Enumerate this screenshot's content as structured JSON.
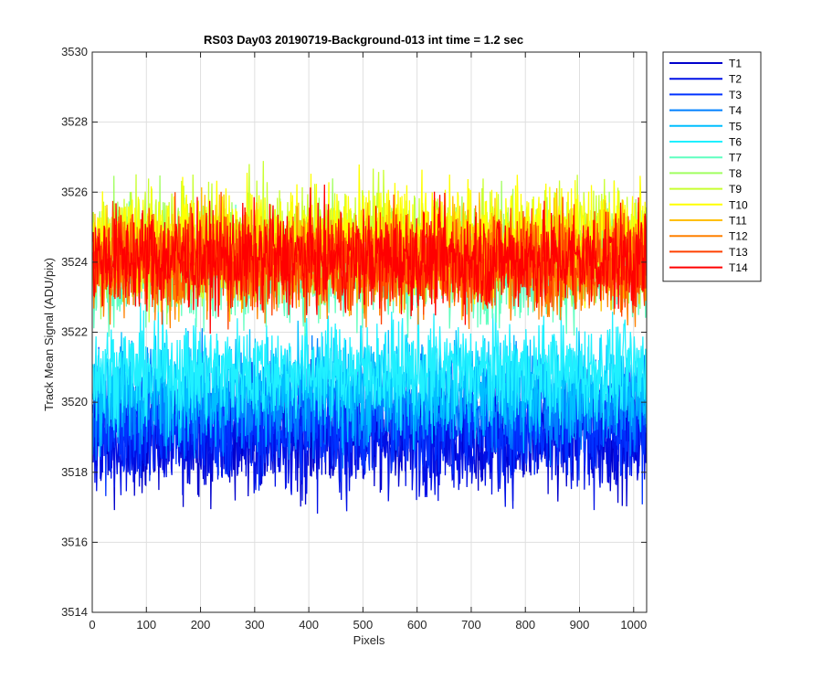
{
  "chart_data": {
    "type": "line",
    "title": "RS03 Day03 20190719-Background-013 int time = 1.2 sec",
    "xlabel": "Pixels",
    "ylabel": "Track Mean Signal (ADU/pix)",
    "xlim": [
      0,
      1024
    ],
    "ylim": [
      3514,
      3530
    ],
    "x_ticks": [
      0,
      100,
      200,
      300,
      400,
      500,
      600,
      700,
      800,
      900,
      1000
    ],
    "y_ticks": [
      3514,
      3516,
      3518,
      3520,
      3522,
      3524,
      3526,
      3528,
      3530
    ],
    "grid": true,
    "legend_position": "outside-top-right",
    "x_range": [
      1,
      1024
    ],
    "series": [
      {
        "name": "T1",
        "color": "#0000cc",
        "mean": 3519.1,
        "noise": 1.4
      },
      {
        "name": "T2",
        "color": "#0010e6",
        "mean": 3519.0,
        "noise": 1.4
      },
      {
        "name": "T3",
        "color": "#0033ff",
        "mean": 3519.4,
        "noise": 1.3
      },
      {
        "name": "T4",
        "color": "#0080ff",
        "mean": 3520.0,
        "noise": 1.2
      },
      {
        "name": "T5",
        "color": "#00bfff",
        "mean": 3520.4,
        "noise": 1.2
      },
      {
        "name": "T6",
        "color": "#20f0ff",
        "mean": 3520.9,
        "noise": 1.2
      },
      {
        "name": "T7",
        "color": "#60ffc0",
        "mean": 3523.8,
        "noise": 1.3
      },
      {
        "name": "T8",
        "color": "#a0ff60",
        "mean": 3524.3,
        "noise": 1.3
      },
      {
        "name": "T9",
        "color": "#c8ff30",
        "mean": 3524.6,
        "noise": 1.3
      },
      {
        "name": "T10",
        "color": "#ffff00",
        "mean": 3524.7,
        "noise": 1.3
      },
      {
        "name": "T11",
        "color": "#ffbf00",
        "mean": 3524.2,
        "noise": 1.2
      },
      {
        "name": "T12",
        "color": "#ff8000",
        "mean": 3523.9,
        "noise": 1.2
      },
      {
        "name": "T13",
        "color": "#ff4000",
        "mean": 3524.0,
        "noise": 1.2
      },
      {
        "name": "T14",
        "color": "#ff0000",
        "mean": 3524.1,
        "noise": 1.2
      }
    ]
  }
}
